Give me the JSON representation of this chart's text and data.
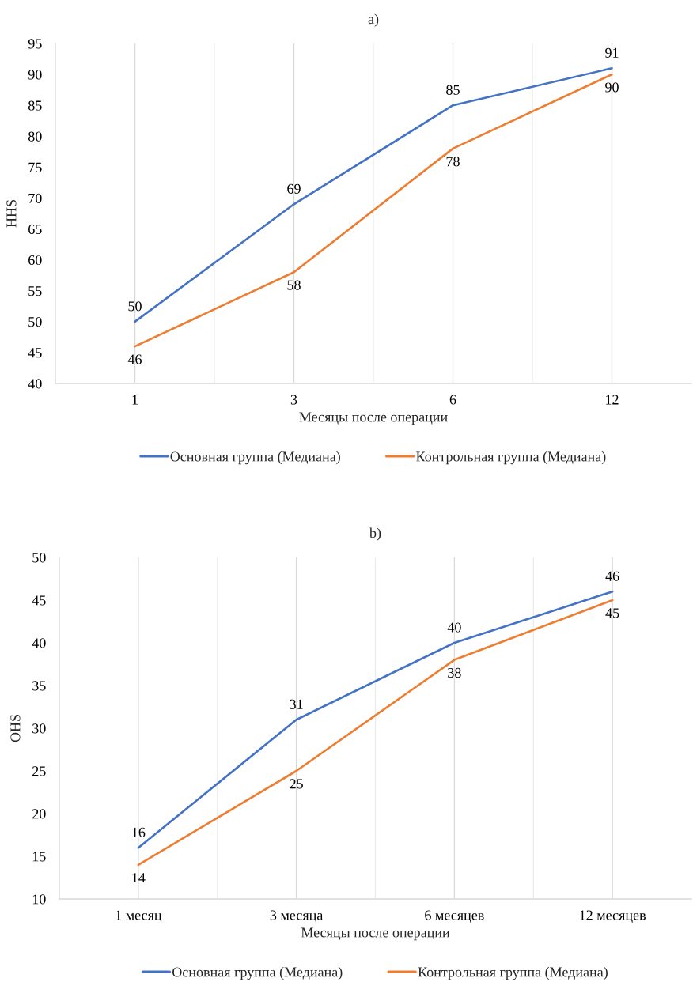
{
  "chart_data": [
    {
      "type": "line",
      "title": "a)",
      "xlabel": "Месяцы после операции",
      "ylabel": "HHS",
      "categories": [
        "1",
        "3",
        "6",
        "12"
      ],
      "series": [
        {
          "name": "Основная группа (Медиана)",
          "color": "#4472c4",
          "values": [
            50,
            69,
            85,
            91
          ]
        },
        {
          "name": "Контрольная группа (Медиана)",
          "color": "#ed7d31",
          "values": [
            46,
            58,
            78,
            90
          ]
        }
      ],
      "ylim": [
        40,
        95
      ],
      "yticks": [
        40,
        45,
        50,
        55,
        60,
        65,
        70,
        75,
        80,
        85,
        90,
        95
      ],
      "grid": "x",
      "legend": "bottom",
      "data_labels": true,
      "marker": "none",
      "line_style": "solid"
    },
    {
      "type": "line",
      "title": "b)",
      "xlabel": "Месяцы после операции",
      "ylabel": "OHS",
      "categories": [
        "1 месяц",
        "3 месяца",
        "6 месяцев",
        "12 месяцев"
      ],
      "series": [
        {
          "name": "Основная группа (Медиана)",
          "color": "#4472c4",
          "values": [
            16,
            31,
            40,
            46
          ]
        },
        {
          "name": "Контрольная группа (Медиана)",
          "color": "#ed7d31",
          "values": [
            14,
            25,
            38,
            45
          ]
        }
      ],
      "ylim": [
        10,
        50
      ],
      "yticks": [
        10,
        15,
        20,
        25,
        30,
        35,
        40,
        45,
        50
      ],
      "grid": "x",
      "legend": "bottom",
      "data_labels": true,
      "marker": "none",
      "line_style": "solid"
    }
  ]
}
